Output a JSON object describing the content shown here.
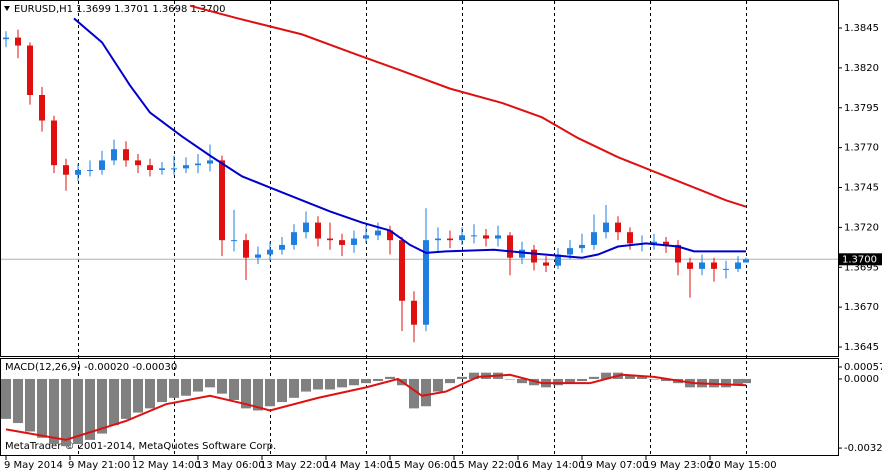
{
  "chart_data": [
    {
      "type": "candlestick",
      "title": "EURUSD,H1",
      "subtitle": "1.3699 1.3701 1.3698 1.3700",
      "up_color": "#1e7fe0",
      "down_color": "#e01010",
      "x": [
        0,
        3,
        6,
        9,
        12,
        15,
        18,
        21,
        24,
        27,
        30,
        33,
        36,
        39,
        42,
        45,
        48,
        51,
        54,
        57,
        60,
        63,
        66,
        69,
        72,
        75,
        78,
        81,
        84,
        87,
        90,
        93,
        96,
        99,
        102,
        105,
        108,
        111,
        114,
        117,
        120,
        123,
        126,
        129,
        132,
        135,
        138,
        141,
        144,
        147,
        150,
        153,
        156,
        159,
        162,
        165,
        168,
        171,
        174,
        177,
        180,
        183,
        185
      ],
      "open": [
        1.3838,
        1.3839,
        1.3834,
        1.3803,
        1.3787,
        1.3759,
        1.3753,
        1.3756,
        1.3756,
        1.3762,
        1.3769,
        1.3762,
        1.3759,
        1.3756,
        1.3757,
        1.3757,
        1.3759,
        1.376,
        1.3762,
        1.3712,
        1.3712,
        1.3701,
        1.3703,
        1.3706,
        1.3709,
        1.3717,
        1.3723,
        1.3713,
        1.3712,
        1.3709,
        1.3713,
        1.3715,
        1.3718,
        1.3712,
        1.3674,
        1.3659,
        1.3712,
        1.3713,
        1.3712,
        1.3715,
        1.3715,
        1.3713,
        1.3715,
        1.3701,
        1.3706,
        1.3698,
        1.3696,
        1.3703,
        1.3707,
        1.3709,
        1.3717,
        1.3723,
        1.3717,
        1.371,
        1.371,
        1.3711,
        1.3709,
        1.3698,
        1.3694,
        1.3698,
        1.3694,
        1.3694,
        1.3698
      ],
      "high": [
        1.3843,
        1.3844,
        1.3836,
        1.3808,
        1.379,
        1.3763,
        1.376,
        1.3762,
        1.3768,
        1.3775,
        1.3774,
        1.3766,
        1.3763,
        1.3761,
        1.3765,
        1.3764,
        1.3766,
        1.3772,
        1.3765,
        1.3731,
        1.3716,
        1.3708,
        1.3711,
        1.3714,
        1.3722,
        1.373,
        1.3727,
        1.3723,
        1.3716,
        1.3718,
        1.3721,
        1.3723,
        1.3721,
        1.3714,
        1.368,
        1.3732,
        1.372,
        1.3718,
        1.372,
        1.3722,
        1.3719,
        1.3721,
        1.3717,
        1.3711,
        1.3709,
        1.3702,
        1.3707,
        1.3712,
        1.3716,
        1.3728,
        1.3734,
        1.3727,
        1.372,
        1.3715,
        1.3716,
        1.3714,
        1.3712,
        1.3701,
        1.3703,
        1.3701,
        1.3699,
        1.3702,
        1.3701
      ],
      "low": [
        1.3833,
        1.3826,
        1.3797,
        1.378,
        1.3754,
        1.3743,
        1.3749,
        1.3752,
        1.3753,
        1.3759,
        1.3758,
        1.3754,
        1.3752,
        1.3753,
        1.3753,
        1.3754,
        1.3754,
        1.3755,
        1.3702,
        1.3705,
        1.3687,
        1.3697,
        1.3699,
        1.3703,
        1.3706,
        1.3713,
        1.3708,
        1.3706,
        1.3702,
        1.3704,
        1.371,
        1.3712,
        1.3703,
        1.3655,
        1.3648,
        1.3655,
        1.3705,
        1.3707,
        1.3709,
        1.371,
        1.3708,
        1.3708,
        1.369,
        1.3697,
        1.3693,
        1.3692,
        1.3694,
        1.37,
        1.3704,
        1.3706,
        1.3713,
        1.3712,
        1.3706,
        1.3705,
        1.3706,
        1.3704,
        1.369,
        1.3676,
        1.369,
        1.3686,
        1.3688,
        1.3692,
        1.3698
      ],
      "close": [
        1.3839,
        1.3834,
        1.3803,
        1.3787,
        1.3759,
        1.3753,
        1.3756,
        1.3756,
        1.3762,
        1.3769,
        1.3762,
        1.3759,
        1.3756,
        1.3757,
        1.3757,
        1.3759,
        1.376,
        1.3762,
        1.3712,
        1.3712,
        1.3701,
        1.3703,
        1.3706,
        1.3709,
        1.3717,
        1.3723,
        1.3713,
        1.3712,
        1.3709,
        1.3713,
        1.3715,
        1.3718,
        1.3712,
        1.3674,
        1.3659,
        1.3712,
        1.3713,
        1.3712,
        1.3715,
        1.3715,
        1.3713,
        1.3715,
        1.3701,
        1.3706,
        1.3698,
        1.3696,
        1.3703,
        1.3707,
        1.3709,
        1.3717,
        1.3723,
        1.3717,
        1.371,
        1.371,
        1.3711,
        1.3709,
        1.3698,
        1.3694,
        1.3698,
        1.3694,
        1.3694,
        1.3698,
        1.37
      ],
      "lines": [
        {
          "color": "#0000cc",
          "x": [
            17,
            24,
            31,
            36,
            44,
            51,
            59,
            66,
            74,
            81,
            89,
            96,
            101,
            105,
            110,
            122,
            130,
            144,
            148,
            153,
            160,
            168,
            172,
            185
          ],
          "values": [
            1.3851,
            1.3836,
            1.3809,
            1.3792,
            1.3777,
            1.3765,
            1.3752,
            1.3745,
            1.3737,
            1.373,
            1.3723,
            1.3718,
            1.3709,
            1.3704,
            1.3705,
            1.3706,
            1.3704,
            1.3701,
            1.3703,
            1.3708,
            1.371,
            1.3708,
            1.3705,
            1.3705
          ]
        },
        {
          "color": "#dd1111",
          "x": [
            46,
            58,
            74,
            88,
            98,
            111,
            124,
            134,
            143,
            153,
            163,
            173,
            180,
            185
          ],
          "values": [
            1.3859,
            1.3851,
            1.3841,
            1.3828,
            1.3819,
            1.3807,
            1.3798,
            1.3789,
            1.3776,
            1.3764,
            1.3754,
            1.3744,
            1.3737,
            1.3733
          ]
        }
      ],
      "last_price": {
        "value": 1.37,
        "label": "1.3700"
      },
      "xlim": [
        -1,
        208
      ],
      "ylim": [
        1.364,
        1.38613
      ],
      "yticks": [
        1.3845,
        {
          "value": 1.382,
          "label": "1.3820"
        },
        1.3795,
        {
          "value": 1.377,
          "label": "1.3770"
        },
        1.3745,
        {
          "value": 1.372,
          "label": "1.3720"
        },
        1.3695,
        {
          "value": 1.367,
          "label": "1.3670"
        },
        1.3645
      ],
      "xticks": [
        {
          "value": 0,
          "label": "9 May 2014"
        },
        {
          "value": 16,
          "label": "9 May 21:00"
        },
        {
          "value": 32,
          "label": "12 May 14:00"
        },
        {
          "value": 48,
          "label": "13 May 06:00"
        },
        {
          "value": 64,
          "label": "13 May 22:00"
        },
        {
          "value": 80,
          "label": "14 May 14:00"
        },
        {
          "value": 96,
          "label": "15 May 06:00"
        },
        {
          "value": 112,
          "label": "15 May 22:00"
        },
        {
          "value": 128,
          "label": "16 May 14:00"
        },
        {
          "value": 144,
          "label": "19 May 07:00"
        },
        {
          "value": 160,
          "label": "19 May 23:00"
        },
        {
          "value": 176,
          "label": "20 May 15:00"
        }
      ],
      "period_separators": [
        18,
        42,
        66,
        90,
        114,
        137,
        161,
        185
      ]
    },
    {
      "type": "macd",
      "title": "MACD(12,26,9) -0.00020 -0.00030",
      "color": "#808080",
      "annotation": "MetaTrader © 2001-2014, MetaQuotes Software Corp.",
      "x": [
        0,
        3,
        6,
        9,
        12,
        15,
        18,
        21,
        24,
        27,
        30,
        33,
        36,
        39,
        42,
        45,
        48,
        51,
        54,
        57,
        60,
        63,
        66,
        69,
        72,
        75,
        78,
        81,
        84,
        87,
        90,
        93,
        96,
        99,
        102,
        105,
        108,
        111,
        114,
        117,
        120,
        123,
        126,
        129,
        132,
        135,
        138,
        141,
        144,
        147,
        150,
        153,
        156,
        159,
        162,
        165,
        168,
        171,
        174,
        177,
        180,
        183,
        185
      ],
      "values": [
        -0.0019,
        -0.0021,
        -0.0025,
        -0.0028,
        -0.0031,
        -0.0032,
        -0.0031,
        -0.0029,
        -0.0026,
        -0.0022,
        -0.0019,
        -0.0016,
        -0.0014,
        -0.0011,
        -0.0009,
        -0.0008,
        -0.0006,
        -0.0004,
        -0.0007,
        -0.001,
        -0.0014,
        -0.0015,
        -0.0013,
        -0.0011,
        -0.0009,
        -0.0006,
        -0.0005,
        -0.0005,
        -0.0004,
        -0.0003,
        -0.0002,
        -0.0001,
        0.0001,
        -0.0003,
        -0.0014,
        -0.0013,
        -0.0006,
        -0.0002,
        0.0001,
        0.0003,
        0.0003,
        0.0003,
        0,
        -0.0002,
        -0.0003,
        -0.0004,
        -0.0003,
        -0.0002,
        -0.0001,
        0.0001,
        0.0003,
        0.0003,
        0.0002,
        0.0001,
        0,
        -0.0001,
        -0.0002,
        -0.0004,
        -0.0004,
        -0.0004,
        -0.0004,
        -0.0003,
        -0.0002
      ],
      "signal": {
        "color": "#dd1111",
        "x": [
          0,
          15,
          30,
          40,
          51,
          60,
          66,
          78,
          90,
          98,
          104,
          110,
          118,
          126,
          134,
          146,
          154,
          162,
          172,
          185
        ],
        "values": [
          -0.0024,
          -0.0029,
          -0.002,
          -0.0012,
          -0.0008,
          -0.0012,
          -0.0015,
          -0.0009,
          -0.0004,
          0,
          -0.0008,
          -0.0006,
          0.0001,
          0.0002,
          -0.0002,
          -0.0002,
          0.0002,
          0.0001,
          -0.0002,
          -0.0003
        ]
      },
      "xlim": [
        -1,
        208
      ],
      "ylim": [
        -0.00362,
        0.00095
      ],
      "yticks": [
        0.00057,
        {
          "value": 0,
          "label": "0.0000"
        },
        -0.00329
      ]
    }
  ]
}
